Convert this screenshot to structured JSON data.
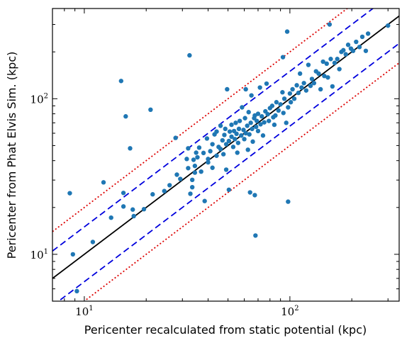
{
  "chart_data": {
    "type": "scatter",
    "title": "",
    "xlabel": "Pericenter recalculated from static potential (kpc)",
    "ylabel": "Pericenter from Phat Elvis Sim. (kpc)",
    "xscale": "log",
    "yscale": "log",
    "xlim": [
      7,
      340
    ],
    "ylim": [
      5,
      380
    ],
    "grid": false,
    "legend": "none",
    "xticks": [
      {
        "value": 10,
        "base": "10",
        "exp": "1"
      },
      {
        "value": 100,
        "base": "10",
        "exp": "2"
      }
    ],
    "yticks": [
      {
        "value": 10,
        "base": "10",
        "exp": "1"
      },
      {
        "value": 100,
        "base": "10",
        "exp": "2"
      }
    ],
    "colors": {
      "points": "#1f77b4",
      "one_to_one": "#000000",
      "factor_1_5": "#0000dd",
      "factor_3": "#dd0000"
    },
    "reference_lines": [
      {
        "factor": 1.0,
        "style": "solid",
        "color_key": "one_to_one"
      },
      {
        "factor": 1.5,
        "style": "dashed",
        "color_key": "factor_1_5"
      },
      {
        "factor": 0.6667,
        "style": "dashed",
        "color_key": "factor_1_5"
      },
      {
        "factor": 2.0,
        "style": "dotted",
        "color_key": "factor_3"
      },
      {
        "factor": 0.5,
        "style": "dotted",
        "color_key": "factor_3"
      }
    ],
    "points": [
      [
        8.5,
        24.7
      ],
      [
        8.8,
        10
      ],
      [
        9.2,
        5.8
      ],
      [
        11,
        12
      ],
      [
        12.4,
        29
      ],
      [
        13.5,
        17.2
      ],
      [
        15.1,
        130
      ],
      [
        15.5,
        24.8
      ],
      [
        15.5,
        20.3
      ],
      [
        15.9,
        77
      ],
      [
        16.7,
        48
      ],
      [
        17.2,
        19.4
      ],
      [
        17.4,
        17.6
      ],
      [
        19.5,
        19.5
      ],
      [
        21,
        85
      ],
      [
        21.5,
        24.3
      ],
      [
        24.5,
        25.5
      ],
      [
        26,
        27.8
      ],
      [
        27.8,
        56
      ],
      [
        28.2,
        32.5
      ],
      [
        29.3,
        30.5
      ],
      [
        31.5,
        41
      ],
      [
        32,
        48
      ],
      [
        32,
        35.8
      ],
      [
        32.5,
        190
      ],
      [
        32.8,
        24.5
      ],
      [
        33.5,
        30.1
      ],
      [
        33.5,
        27
      ],
      [
        34,
        40.5
      ],
      [
        34.5,
        33.5
      ],
      [
        34.5,
        37
      ],
      [
        35,
        45
      ],
      [
        35.5,
        42
      ],
      [
        36.2,
        48.5
      ],
      [
        37,
        34
      ],
      [
        38,
        44.8
      ],
      [
        38.5,
        22
      ],
      [
        39.5,
        55.5
      ],
      [
        40,
        39
      ],
      [
        40,
        41
      ],
      [
        41,
        46
      ],
      [
        42,
        36
      ],
      [
        42,
        51
      ],
      [
        43,
        59
      ],
      [
        44,
        43
      ],
      [
        44,
        61.5
      ],
      [
        45,
        49
      ],
      [
        46,
        47.5
      ],
      [
        46,
        67
      ],
      [
        47,
        54
      ],
      [
        47.5,
        44
      ],
      [
        48,
        58.5
      ],
      [
        48.5,
        64
      ],
      [
        49,
        51
      ],
      [
        49,
        35
      ],
      [
        49.5,
        115
      ],
      [
        50.5,
        53.5
      ],
      [
        50.5,
        26
      ],
      [
        51,
        61.5
      ],
      [
        52,
        57
      ],
      [
        52,
        68
      ],
      [
        53,
        49
      ],
      [
        53.5,
        62
      ],
      [
        54,
        55
      ],
      [
        54.5,
        70
      ],
      [
        55,
        59.5
      ],
      [
        55.5,
        45
      ],
      [
        56,
        52
      ],
      [
        56.5,
        64
      ],
      [
        57,
        72
      ],
      [
        58,
        58
      ],
      [
        58.5,
        88
      ],
      [
        59.5,
        63
      ],
      [
        60,
        55
      ],
      [
        60.5,
        75
      ],
      [
        61,
        60
      ],
      [
        61,
        115
      ],
      [
        62,
        67
      ],
      [
        62.5,
        47
      ],
      [
        63,
        82
      ],
      [
        63.5,
        59
      ],
      [
        64,
        25
      ],
      [
        64.5,
        70
      ],
      [
        65,
        105
      ],
      [
        65.5,
        64
      ],
      [
        66,
        53
      ],
      [
        67,
        75
      ],
      [
        67.5,
        78
      ],
      [
        67.5,
        24
      ],
      [
        68,
        13.2
      ],
      [
        68.5,
        66
      ],
      [
        69,
        72
      ],
      [
        70,
        80
      ],
      [
        70,
        62
      ],
      [
        71.5,
        118
      ],
      [
        72,
        68.5
      ],
      [
        73,
        77
      ],
      [
        74,
        58
      ],
      [
        75,
        70.5
      ],
      [
        76,
        83
      ],
      [
        77,
        125
      ],
      [
        78,
        79.5
      ],
      [
        79,
        72
      ],
      [
        80,
        87
      ],
      [
        82,
        90
      ],
      [
        83,
        76
      ],
      [
        84,
        68
      ],
      [
        85,
        78
      ],
      [
        86,
        95
      ],
      [
        88,
        84
      ],
      [
        90,
        92
      ],
      [
        92,
        110
      ],
      [
        92.5,
        185
      ],
      [
        93,
        81
      ],
      [
        94,
        100
      ],
      [
        96,
        70
      ],
      [
        97,
        270
      ],
      [
        98,
        88
      ],
      [
        98,
        21.8
      ],
      [
        100,
        108
      ],
      [
        101,
        95
      ],
      [
        103,
        115
      ],
      [
        105,
        100
      ],
      [
        108,
        122
      ],
      [
        110,
        109
      ],
      [
        112,
        145
      ],
      [
        114,
        118
      ],
      [
        117,
        126
      ],
      [
        120,
        113
      ],
      [
        123,
        165
      ],
      [
        126,
        121
      ],
      [
        128,
        134
      ],
      [
        131,
        126
      ],
      [
        134,
        150
      ],
      [
        138,
        145
      ],
      [
        141,
        115
      ],
      [
        145,
        173
      ],
      [
        147,
        140
      ],
      [
        151,
        168
      ],
      [
        153,
        137
      ],
      [
        156,
        300
      ],
      [
        158,
        180
      ],
      [
        161,
        120
      ],
      [
        165,
        170
      ],
      [
        170,
        180
      ],
      [
        174,
        155
      ],
      [
        178,
        200
      ],
      [
        182,
        205
      ],
      [
        187,
        193
      ],
      [
        192,
        222
      ],
      [
        198,
        210
      ],
      [
        203,
        203
      ],
      [
        210,
        232
      ],
      [
        218,
        215
      ],
      [
        225,
        250
      ],
      [
        234,
        203
      ],
      [
        240,
        262
      ],
      [
        300,
        295
      ]
    ]
  }
}
